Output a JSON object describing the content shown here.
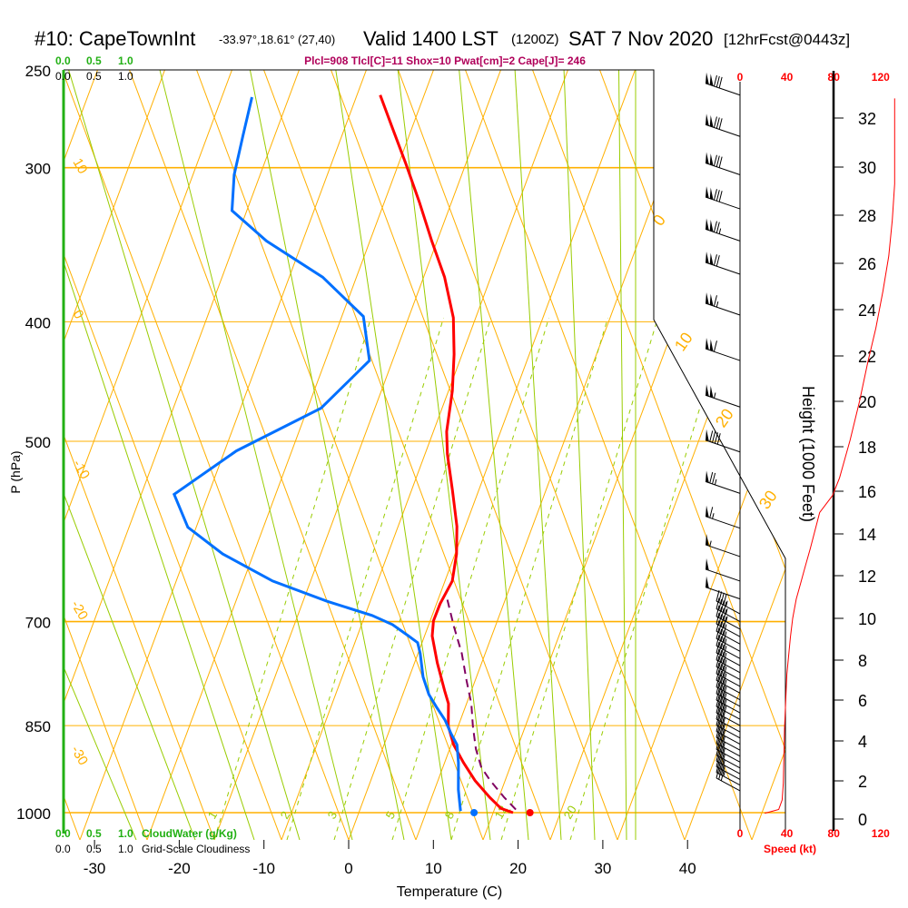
{
  "header": {
    "station": "#10: CapeTownInt",
    "coords": "-33.97°,18.61° (27,40)",
    "valid": "Valid 1400 LST",
    "utc": "(1200Z)",
    "date": "SAT 7 Nov 2020",
    "forecast": "[12hrFcst@0443z]",
    "indices": "Plcl=908 Tlcl[C]=11 Shox=10 Pwat[cm]=2 Cape[J]= 246"
  },
  "colors": {
    "temperature": "#ff0000",
    "dewpoint": "#0070ff",
    "parcel": "#800060",
    "isopleth": "#ffb000",
    "moist": "#99cc00",
    "cloud_axis": "#22b014",
    "indices": "#b0005a"
  },
  "cloud_scale": {
    "cloudwater_ticks": [
      "0.0",
      "0.5",
      "1.0"
    ],
    "cloudwater_label": "CloudWater (g/Kg)",
    "cloudiness_ticks": [
      "0.0",
      "0.5",
      "1.0"
    ],
    "cloudiness_label": "Grid-Scale Cloudiness"
  },
  "chart_data": {
    "type": "line",
    "subtype": "skew-T log-P sounding",
    "xlabel": "Temperature (C)",
    "ylabel": "P (hPa)",
    "x_ticks": [
      "-30",
      "-20",
      "-10",
      "0",
      "10",
      "20",
      "30",
      "40"
    ],
    "x_tick_values": [
      -30,
      -20,
      -10,
      0,
      10,
      20,
      30,
      40
    ],
    "y_ticks": [
      "250",
      "300",
      "400",
      "500",
      "700",
      "850",
      "1000"
    ],
    "y_tick_values": [
      250,
      300,
      400,
      500,
      700,
      850,
      1000
    ],
    "ylim": [
      1000,
      250
    ],
    "dry_adiabat_labels_left": [
      "10",
      "0",
      "-10",
      "-20",
      "-30"
    ],
    "isotherm_labels_right": [
      "0",
      "10",
      "20",
      "30"
    ],
    "mixing_ratio_labels": [
      "1",
      "2",
      "3",
      "5",
      "8",
      "12",
      "20"
    ],
    "series": [
      {
        "name": "Temperature",
        "color": "#ff0000",
        "points": [
          [
            262,
            -41.6
          ],
          [
            278,
            -38.2
          ],
          [
            298,
            -34.2
          ],
          [
            320,
            -30.2
          ],
          [
            344,
            -26.3
          ],
          [
            368,
            -22.5
          ],
          [
            397,
            -18.9
          ],
          [
            425,
            -16.5
          ],
          [
            455,
            -14.4
          ],
          [
            491,
            -12.5
          ],
          [
            512,
            -11.0
          ],
          [
            548,
            -8.1
          ],
          [
            586,
            -5.3
          ],
          [
            617,
            -3.6
          ],
          [
            649,
            -2.4
          ],
          [
            677,
            -2.4
          ],
          [
            699,
            -2.1
          ],
          [
            719,
            -1.3
          ],
          [
            756,
            1.0
          ],
          [
            796,
            3.6
          ],
          [
            816,
            4.9
          ],
          [
            851,
            6.3
          ],
          [
            881,
            8.1
          ],
          [
            911,
            10.4
          ],
          [
            942,
            12.9
          ],
          [
            972,
            15.7
          ],
          [
            992,
            17.7
          ],
          [
            1000,
            19.4
          ]
        ],
        "surface": [
          1000,
          21.4
        ]
      },
      {
        "name": "Dewpoint",
        "color": "#0070ff",
        "points": [
          [
            263,
            -56.6
          ],
          [
            283,
            -55.2
          ],
          [
            304,
            -53.8
          ],
          [
            325,
            -51.8
          ],
          [
            344,
            -45.8
          ],
          [
            368,
            -36.9
          ],
          [
            396,
            -29.6
          ],
          [
            430,
            -26.1
          ],
          [
            470,
            -28.8
          ],
          [
            509,
            -36.1
          ],
          [
            552,
            -40.7
          ],
          [
            587,
            -37.0
          ],
          [
            617,
            -31.2
          ],
          [
            649,
            -23.6
          ],
          [
            674,
            -15.9
          ],
          [
            692,
            -9.7
          ],
          [
            704,
            -6.7
          ],
          [
            719,
            -4.1
          ],
          [
            728,
            -2.6
          ],
          [
            743,
            -1.6
          ],
          [
            776,
            0.2
          ],
          [
            802,
            2.0
          ],
          [
            820,
            3.6
          ],
          [
            841,
            5.5
          ],
          [
            863,
            7.1
          ],
          [
            881,
            8.5
          ],
          [
            911,
            9.8
          ],
          [
            958,
            11.5
          ],
          [
            997,
            13.1
          ]
        ],
        "surface": [
          1000,
          14.8
        ]
      },
      {
        "name": "Parcel",
        "color": "#800060",
        "dashed": true,
        "points": [
          [
            672,
            -1.8
          ],
          [
            707,
            0.7
          ],
          [
            743,
            3.3
          ],
          [
            782,
            5.6
          ],
          [
            816,
            7.6
          ],
          [
            851,
            9.2
          ],
          [
            888,
            11.0
          ],
          [
            919,
            12.8
          ],
          [
            942,
            14.7
          ],
          [
            972,
            17.4
          ],
          [
            997,
            19.8
          ]
        ]
      }
    ],
    "wind_speed_axis": {
      "label": "Speed (kt)",
      "ticks": [
        "0",
        "40",
        "80",
        "120"
      ],
      "tick_values": [
        0,
        40,
        80,
        120
      ]
    },
    "height_axis": {
      "label": "Height (1000 Feet)",
      "ticks": [
        "0",
        "2",
        "4",
        "6",
        "8",
        "10",
        "12",
        "14",
        "16",
        "18",
        "20",
        "22",
        "24",
        "26",
        "28",
        "30",
        "32"
      ],
      "tick_values": [
        0,
        2,
        4,
        6,
        8,
        10,
        12,
        14,
        16,
        18,
        20,
        22,
        24,
        26,
        28,
        30,
        32
      ]
    },
    "wind_speed_profile": [
      [
        0.3,
        21
      ],
      [
        0.4,
        27
      ],
      [
        0.5,
        33
      ],
      [
        1.0,
        36
      ],
      [
        1.9,
        37
      ],
      [
        4.6,
        38
      ],
      [
        7.3,
        40
      ],
      [
        9.1,
        43
      ],
      [
        10,
        45
      ],
      [
        10.9,
        48
      ],
      [
        11.7,
        52
      ],
      [
        12.5,
        56
      ],
      [
        13.3,
        60
      ],
      [
        15,
        68
      ],
      [
        15.8,
        79
      ],
      [
        16.6,
        85
      ],
      [
        18.3,
        94
      ],
      [
        20,
        102
      ],
      [
        21.7,
        109
      ],
      [
        23.2,
        116
      ],
      [
        24.8,
        122
      ],
      [
        26.3,
        127
      ],
      [
        27.8,
        130
      ],
      [
        29.3,
        132
      ],
      [
        32.8,
        132
      ]
    ],
    "wind_barbs": [
      [
        262,
        130
      ],
      [
        283,
        132
      ],
      [
        304,
        130
      ],
      [
        324,
        128
      ],
      [
        344,
        127
      ],
      [
        366,
        122
      ],
      [
        395,
        116
      ],
      [
        430,
        109
      ],
      [
        469,
        103
      ],
      [
        510,
        92
      ],
      [
        551,
        75
      ],
      [
        588,
        64
      ],
      [
        620,
        56
      ],
      [
        649,
        50
      ],
      [
        671,
        48
      ],
      [
        690,
        45
      ],
      [
        700,
        44
      ],
      [
        710,
        43
      ],
      [
        720,
        42
      ],
      [
        730,
        42
      ],
      [
        740,
        41
      ],
      [
        750,
        41
      ],
      [
        760,
        40
      ],
      [
        770,
        40
      ],
      [
        780,
        40
      ],
      [
        790,
        39
      ],
      [
        800,
        39
      ],
      [
        810,
        39
      ],
      [
        820,
        38
      ],
      [
        830,
        38
      ],
      [
        840,
        38
      ],
      [
        850,
        38
      ],
      [
        860,
        37
      ],
      [
        870,
        37
      ],
      [
        880,
        37
      ],
      [
        890,
        36
      ],
      [
        900,
        36
      ],
      [
        910,
        36
      ],
      [
        920,
        35
      ],
      [
        930,
        35
      ],
      [
        940,
        34
      ],
      [
        950,
        33
      ],
      [
        960,
        30
      ]
    ]
  }
}
